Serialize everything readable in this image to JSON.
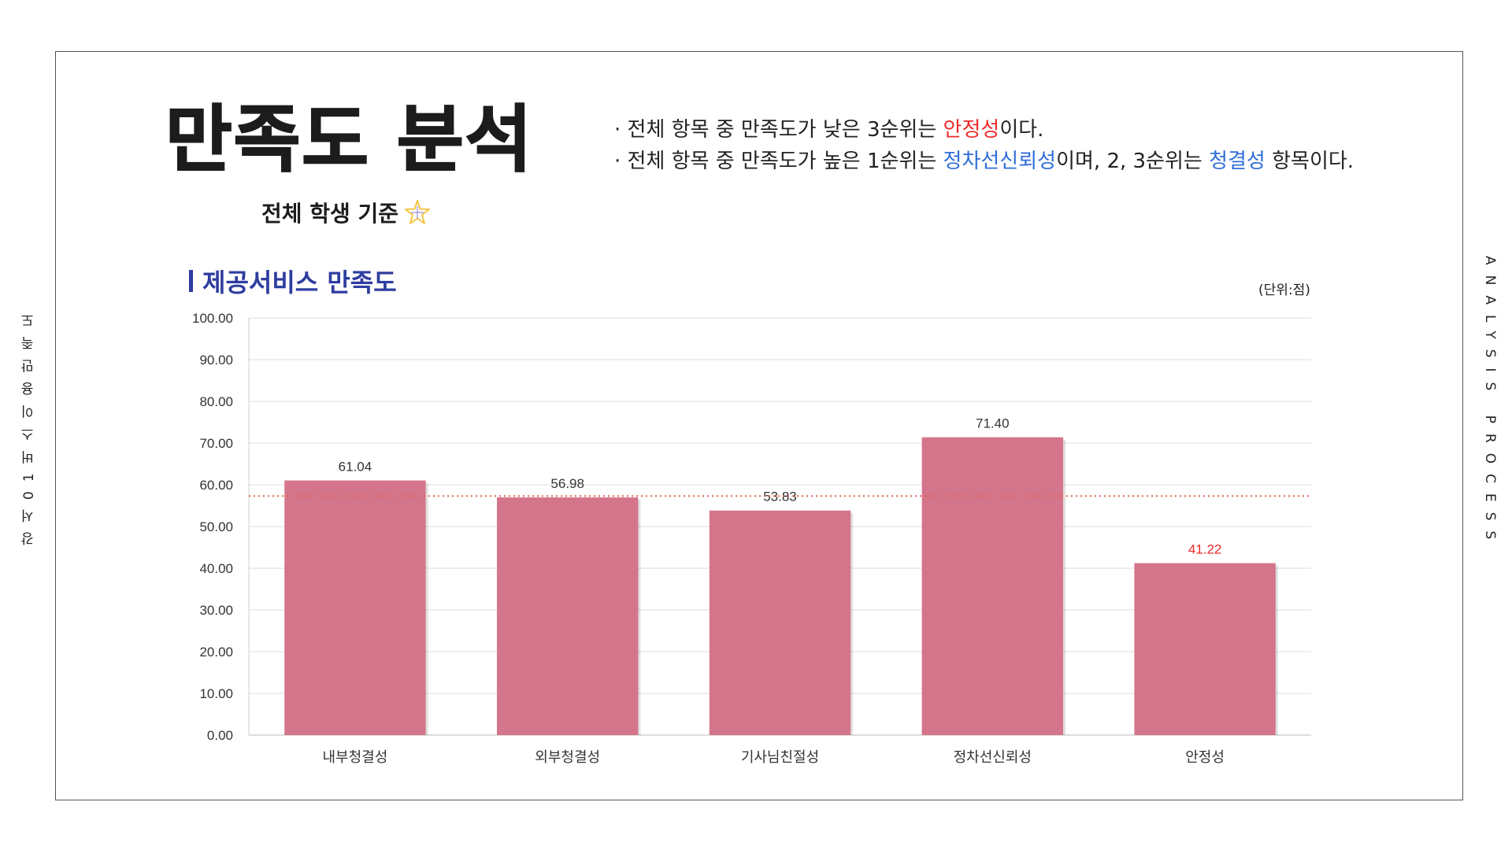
{
  "side_left_text": "강서01버스이용만족도",
  "side_right_text": "ANALYSIS PROCESS",
  "header": {
    "title": "만족도 분석",
    "subtitle": "전체 학생 기준"
  },
  "notes": {
    "line1": {
      "prefix": "· 전체 항목 중 만족도가 낮은 3순위는 ",
      "highlight": "안정성",
      "suffix": "이다."
    },
    "line2": {
      "prefix": "· 전체 항목 중 만족도가 높은 1순위는 ",
      "highlight1": "정차선신뢰성",
      "middle": "이며, 2, 3순위는 ",
      "highlight2": "청결성",
      "suffix": " 항목이다."
    }
  },
  "section_title": "제공서비스 만족도",
  "unit": "(단위:점)",
  "colors": {
    "bar": "#d4758b",
    "highlight_red": "#ee2a2a",
    "highlight_blue": "#2f6ed9",
    "section_title": "#2e3d9f",
    "average_line": "#e8604c",
    "star": "#f5c542"
  },
  "icons": {
    "subtitle_icon": "sparkle-star-icon"
  },
  "chart_data": {
    "type": "bar",
    "categories": [
      "내부청결성",
      "외부청결성",
      "기사님친절성",
      "정차선신뢰성",
      "안정성"
    ],
    "values": [
      61.04,
      56.98,
      53.83,
      71.4,
      41.22
    ],
    "value_labels": [
      "61.04",
      "56.98",
      "53.83",
      "71.40",
      "41.22"
    ],
    "label_colors": [
      "#333333",
      "#333333",
      "#333333",
      "#333333",
      "#ee2a2a"
    ],
    "y_ticks": [
      "0.00",
      "10.00",
      "20.00",
      "30.00",
      "40.00",
      "50.00",
      "60.00",
      "70.00",
      "80.00",
      "90.00",
      "100.00"
    ],
    "ylim": [
      0,
      100
    ],
    "reference_line": 57.3,
    "grid": true,
    "title": "제공서비스 만족도",
    "xlabel": "",
    "ylabel": ""
  }
}
